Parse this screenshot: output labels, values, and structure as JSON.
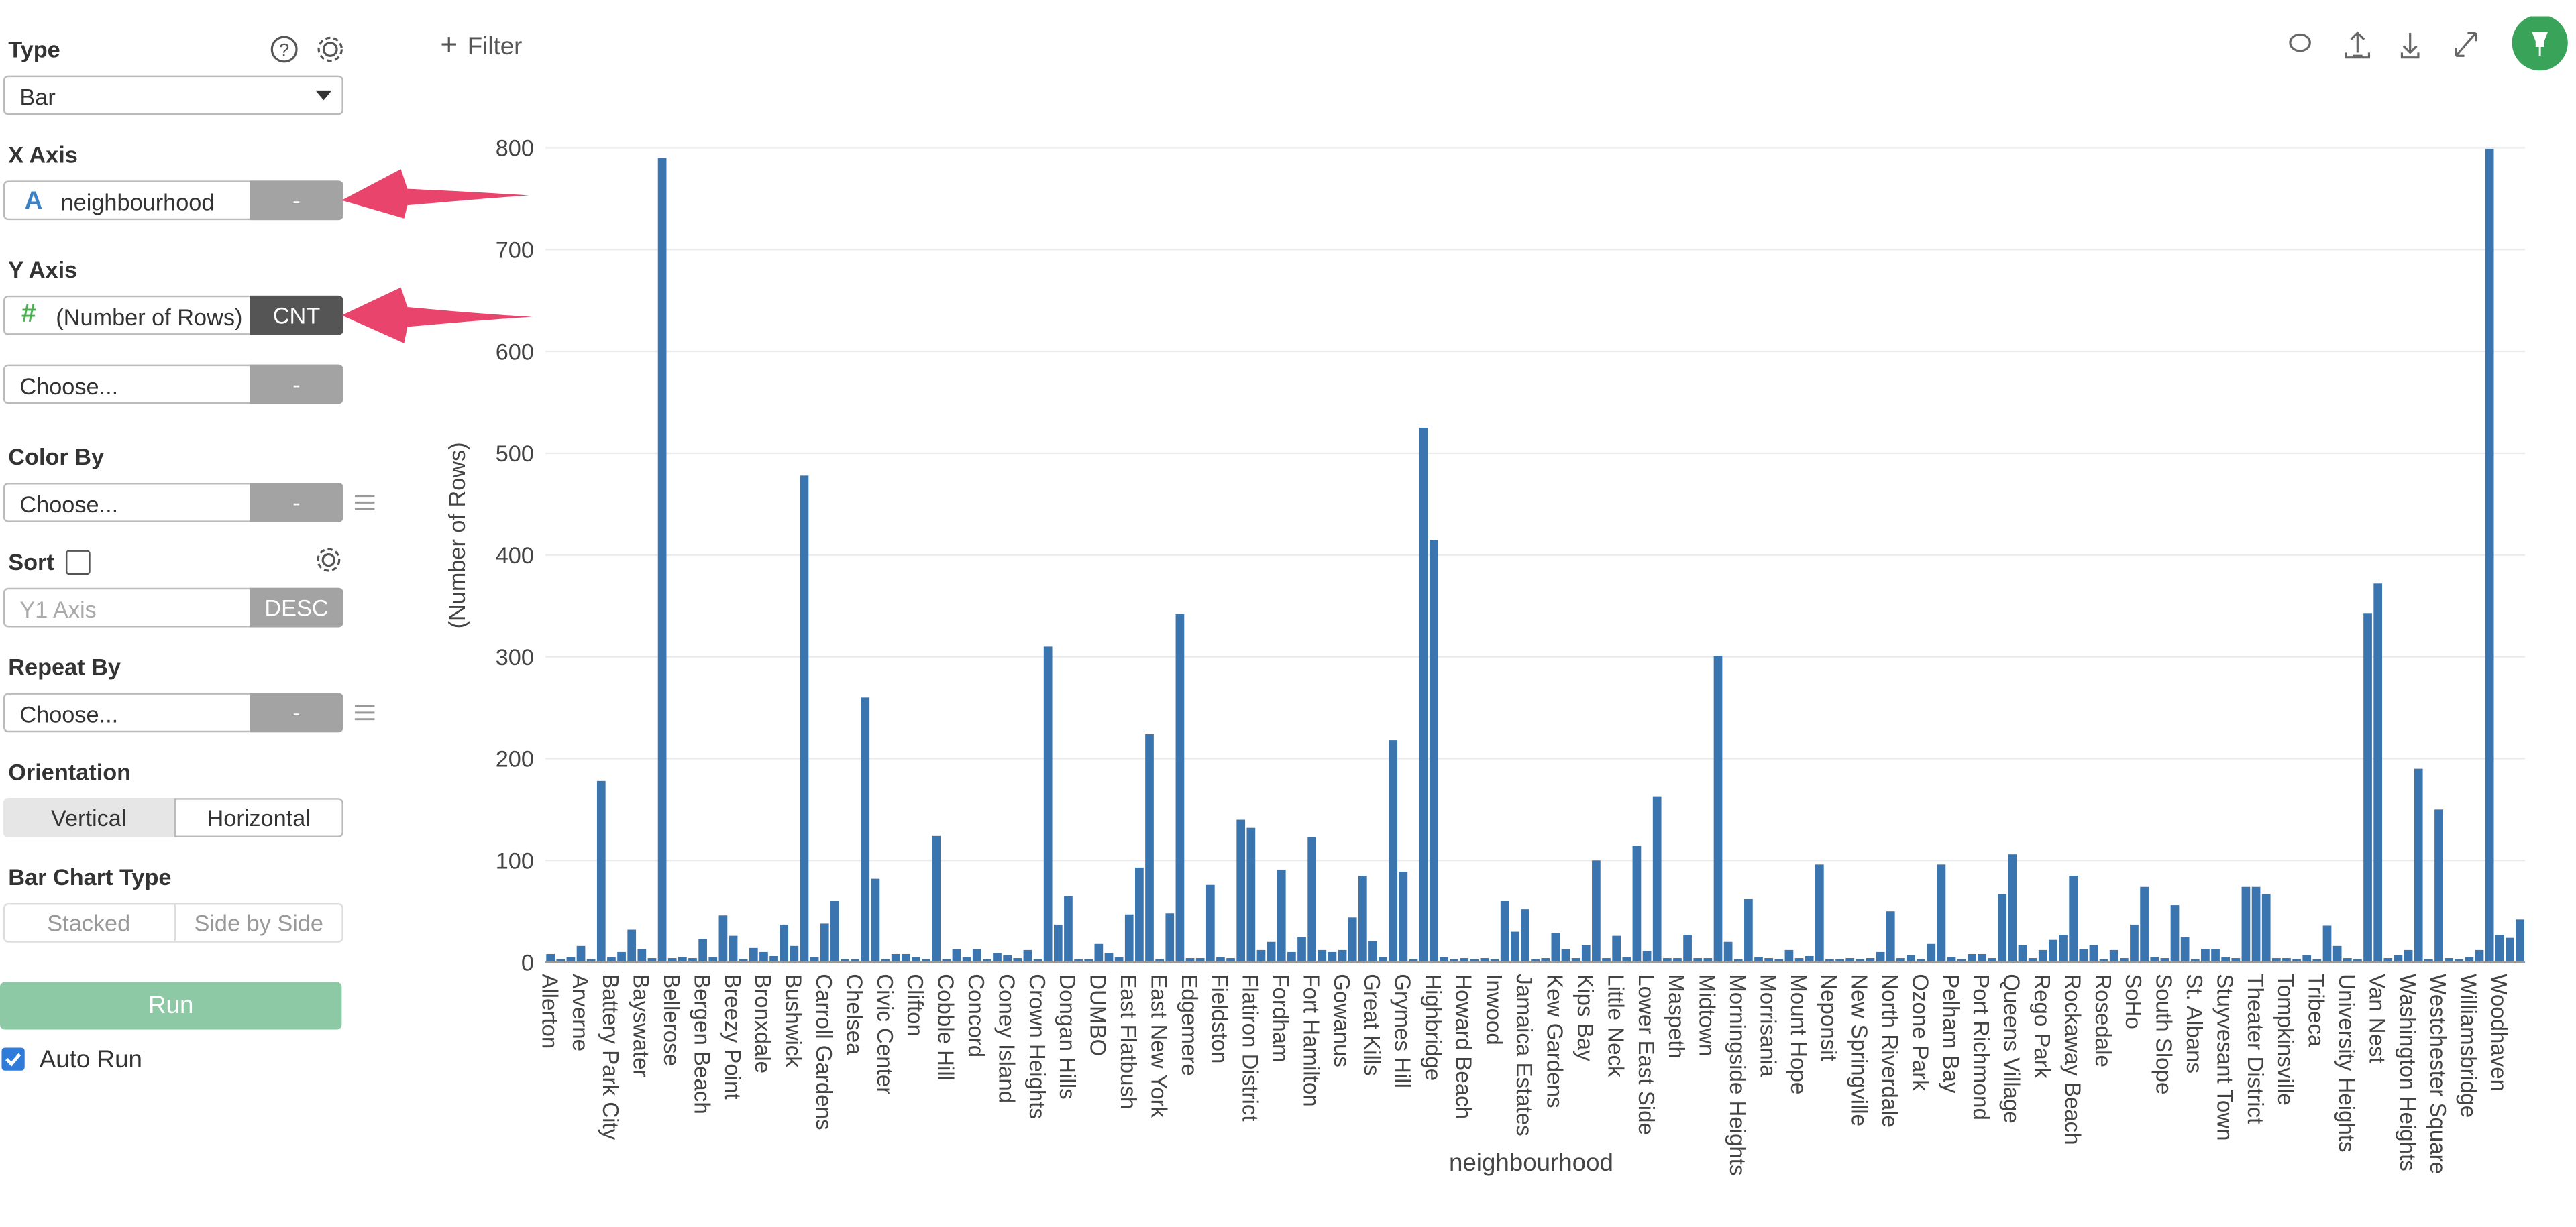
{
  "sidebar": {
    "type_label": "Type",
    "type_value": "Bar",
    "x_axis_label": "X Axis",
    "x_axis_icon": "A",
    "x_axis_value": "neighbourhood",
    "x_axis_agg": "-",
    "y_axis_label": "Y Axis",
    "y_axis_icon": "#",
    "y_axis_value": "(Number of Rows)",
    "y_axis_agg": "CNT",
    "y2_value": "Choose...",
    "y2_agg": "-",
    "color_by_label": "Color By",
    "color_by_value": "Choose...",
    "color_by_agg": "-",
    "sort_label": "Sort",
    "sort_value": "Y1 Axis",
    "sort_order": "DESC",
    "repeat_by_label": "Repeat By",
    "repeat_by_value": "Choose...",
    "repeat_by_agg": "-",
    "orientation_label": "Orientation",
    "orientation_options": [
      "Vertical",
      "Horizontal"
    ],
    "bar_type_label": "Bar Chart Type",
    "bar_type_options": [
      "Stacked",
      "Side by Side"
    ],
    "run_button": "Run",
    "auto_run": "Auto Run"
  },
  "toolbar": {
    "filter": "Filter"
  },
  "chart_data": {
    "type": "bar",
    "color": "#3a75b0",
    "grid": true,
    "y_label": "(Number of Rows)",
    "x_label": "neighbourhood",
    "ylim": [
      0,
      800
    ],
    "yticks": [
      0,
      100,
      200,
      300,
      400,
      500,
      600,
      700,
      800
    ],
    "categories": [
      "Allerton",
      null,
      null,
      "Arverne",
      null,
      null,
      "Battery Park City",
      null,
      null,
      "Bayswater",
      null,
      null,
      "Bellerose",
      null,
      null,
      "Bergen Beach",
      null,
      null,
      "Breezy Point",
      null,
      null,
      "Bronxdale",
      null,
      null,
      "Bushwick",
      null,
      null,
      "Carroll Gardens",
      null,
      null,
      "Chelsea",
      null,
      null,
      "Civic Center",
      null,
      null,
      "Clifton",
      null,
      null,
      "Cobble Hill",
      null,
      null,
      "Concord",
      null,
      null,
      "Coney Island",
      null,
      null,
      "Crown Heights",
      null,
      null,
      "Dongan Hills",
      null,
      null,
      "DUMBO",
      null,
      null,
      "East Flatbush",
      null,
      null,
      "East New York",
      null,
      null,
      "Edgemere",
      null,
      null,
      "Fieldston",
      null,
      null,
      "Flatiron District",
      null,
      null,
      "Fordham",
      null,
      null,
      "Fort Hamilton",
      null,
      null,
      "Gowanus",
      null,
      null,
      "Great Kills",
      null,
      null,
      "Grymes Hill",
      null,
      null,
      "Highbridge",
      null,
      null,
      "Howard Beach",
      null,
      null,
      "Inwood",
      null,
      null,
      "Jamaica Estates",
      null,
      null,
      "Kew Gardens",
      null,
      null,
      "Kips Bay",
      null,
      null,
      "Little Neck",
      null,
      null,
      "Lower East Side",
      null,
      null,
      "Maspeth",
      null,
      null,
      "Midtown",
      null,
      null,
      "Morningside Heights",
      null,
      null,
      "Morrisania",
      null,
      null,
      "Mount Hope",
      null,
      null,
      "Neponsit",
      null,
      null,
      "New Springville",
      null,
      null,
      "North Riverdale",
      null,
      null,
      "Ozone Park",
      null,
      null,
      "Pelham Bay",
      null,
      null,
      "Port Richmond",
      null,
      null,
      "Queens Village",
      null,
      null,
      "Rego Park",
      null,
      null,
      "Rockaway Beach",
      null,
      null,
      "Rosedale",
      null,
      null,
      "SoHo",
      null,
      null,
      "South Slope",
      null,
      null,
      "St. Albans",
      null,
      null,
      "Stuyvesant Town",
      null,
      null,
      "Theater District",
      null,
      null,
      "Tompkinsville",
      null,
      null,
      "Tribeca",
      null,
      null,
      "University Heights",
      null,
      null,
      "Van Nest",
      null,
      null,
      "Washington Heights",
      null,
      null,
      "Westchester Square",
      null,
      null,
      "Williamsbridge",
      null,
      null,
      "Woodhaven",
      null,
      null
    ],
    "values": [
      8,
      3,
      5,
      16,
      3,
      178,
      5,
      10,
      32,
      13,
      4,
      790,
      4,
      5,
      4,
      23,
      5,
      46,
      26,
      3,
      14,
      10,
      6,
      37,
      16,
      478,
      5,
      38,
      60,
      3,
      3,
      260,
      82,
      3,
      8,
      8,
      5,
      3,
      124,
      3,
      13,
      5,
      13,
      3,
      9,
      7,
      4,
      12,
      3,
      310,
      37,
      65,
      3,
      3,
      18,
      9,
      5,
      47,
      93,
      224,
      3,
      48,
      342,
      4,
      4,
      76,
      5,
      4,
      140,
      132,
      12,
      20,
      91,
      10,
      25,
      123,
      12,
      10,
      12,
      44,
      85,
      21,
      5,
      218,
      89,
      3,
      525,
      415,
      5,
      3,
      4,
      3,
      4,
      3,
      60,
      30,
      52,
      3,
      4,
      29,
      13,
      4,
      17,
      100,
      4,
      26,
      5,
      114,
      11,
      163,
      4,
      4,
      27,
      4,
      4,
      301,
      20,
      3,
      62,
      5,
      4,
      3,
      12,
      4,
      6,
      96,
      3,
      3,
      4,
      3,
      4,
      10,
      50,
      4,
      7,
      3,
      18,
      96,
      5,
      3,
      8,
      8,
      4,
      67,
      106,
      17,
      4,
      12,
      22,
      27,
      85,
      13,
      17,
      3,
      12,
      4,
      37,
      74,
      5,
      4,
      56,
      25,
      3,
      13,
      13,
      5,
      4,
      74,
      74,
      67,
      4,
      4,
      3,
      7,
      3,
      36,
      16,
      4,
      3,
      343,
      372,
      4,
      7,
      12,
      190,
      3,
      150,
      4,
      3,
      5,
      12,
      799,
      27,
      24,
      42
    ]
  }
}
